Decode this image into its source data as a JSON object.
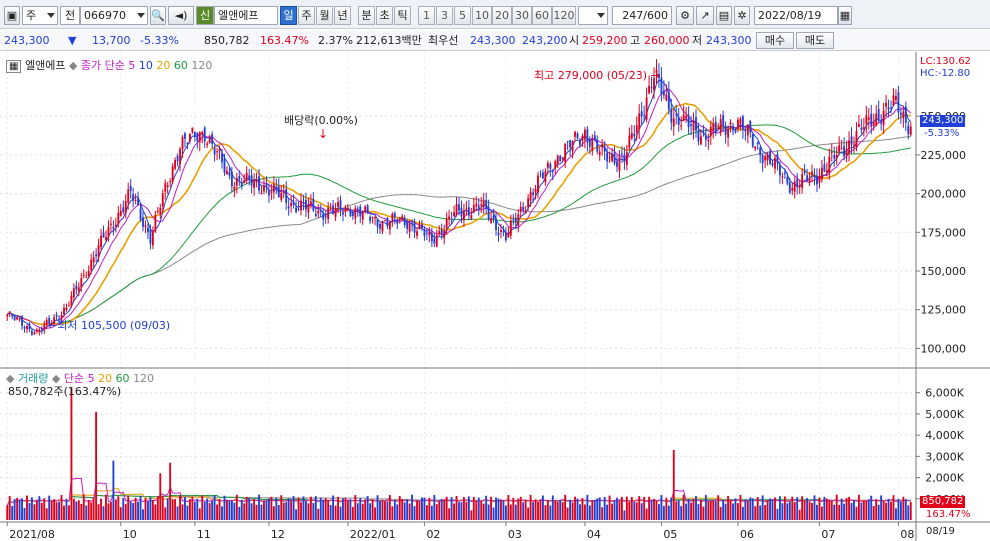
{
  "toolbar": {
    "market": "주",
    "prev_label": "전",
    "code": "066970",
    "badge": "신",
    "name": "엘앤에프",
    "periods": [
      "일",
      "주",
      "월",
      "년",
      "분",
      "초",
      "틱"
    ],
    "active_period": "일",
    "numbers": [
      "1",
      "3",
      "5",
      "10",
      "20",
      "30",
      "60",
      "120"
    ],
    "count": "247",
    "count_total": "/600",
    "date": "2022/08/19"
  },
  "quote": {
    "price": "243,300",
    "change": "13,700",
    "change_pct": "-5.33%",
    "volume": "850,782",
    "volume_ratio": "163.47%",
    "turnover": "2.37%",
    "amount": "212,613백만",
    "best_label": "최우선",
    "best_ask": "243,300",
    "best_bid": "243,200",
    "open_label": "시",
    "open": "259,200",
    "high_label": "고",
    "high": "260,000",
    "low_label": "저",
    "low": "243,300",
    "buy_btn": "매수",
    "sell_btn": "매도"
  },
  "price_legend": {
    "name": "엘앤에프",
    "label": "종가 단순",
    "ma5": "5",
    "ma10": "10",
    "ma20": "20",
    "ma60": "60",
    "ma120": "120"
  },
  "volume_legend": {
    "label": "거래량",
    "kind": "단순",
    "ma5": "5",
    "ma20": "20",
    "ma60": "60",
    "ma120": "120",
    "value": "850,782주(163.47%)"
  },
  "annotations": {
    "high": "최고 279,000 (05/23)",
    "low": "최저 105,500 (09/03)",
    "dividend": "배당락(0.00%)",
    "lc": "LC:130.62",
    "hc": "HC:-12.80",
    "current_price": "243,300",
    "current_pct": "-5.33%",
    "current_vol": "850,782",
    "current_vol_pct": "163.47%",
    "bottom_date": "08/19"
  },
  "colors": {
    "up": "#e0001b",
    "down": "#1f3fd6",
    "ma5": "#1f3fd6",
    "ma10": "#c21fc2",
    "ma20": "#e8a000",
    "ma60": "#1f9a3a",
    "ma120": "#8a8a8a"
  },
  "chart_data": {
    "type": "candlestick",
    "price_axis": {
      "ticks": [
        "250,000",
        "225,000",
        "200,000",
        "175,000",
        "150,000",
        "125,000",
        "100,000"
      ],
      "ylim": [
        88000,
        285000
      ]
    },
    "volume_axis": {
      "ticks": [
        "6,000K",
        "5,000K",
        "4,000K",
        "3,000K",
        "2,000K",
        "1,000K"
      ],
      "ylim": [
        0,
        6600000
      ]
    },
    "x_ticks": [
      "2021/08",
      "10",
      "11",
      "12",
      "2022/01",
      "02",
      "03",
      "04",
      "05",
      "06",
      "07",
      "08"
    ],
    "anchor_closes": [
      [
        0,
        122000
      ],
      [
        12,
        110000
      ],
      [
        24,
        126000
      ],
      [
        38,
        168000
      ],
      [
        50,
        200000
      ],
      [
        58,
        172000
      ],
      [
        70,
        232000
      ],
      [
        80,
        240000
      ],
      [
        90,
        210000
      ],
      [
        104,
        205000
      ],
      [
        116,
        193000
      ],
      [
        128,
        188000
      ],
      [
        140,
        190000
      ],
      [
        150,
        182000
      ],
      [
        162,
        182000
      ],
      [
        172,
        170000
      ],
      [
        182,
        188000
      ],
      [
        192,
        192000
      ],
      [
        202,
        172000
      ],
      [
        212,
        200000
      ],
      [
        222,
        222000
      ],
      [
        234,
        240000
      ],
      [
        240,
        226000
      ],
      [
        250,
        222000
      ],
      [
        262,
        276000
      ],
      [
        270,
        250000
      ],
      [
        282,
        238000
      ],
      [
        296,
        246000
      ],
      [
        306,
        226000
      ],
      [
        318,
        205000
      ],
      [
        328,
        212000
      ],
      [
        338,
        228000
      ],
      [
        350,
        248000
      ],
      [
        360,
        258000
      ],
      [
        366,
        243300
      ]
    ],
    "volume_spikes": [
      [
        26,
        6250000
      ],
      [
        36,
        5100000
      ],
      [
        43,
        2800000
      ],
      [
        62,
        2200000
      ],
      [
        66,
        2700000
      ],
      [
        270,
        3300000
      ]
    ],
    "high": 279000,
    "low": 105500,
    "last_close": 243300
  }
}
